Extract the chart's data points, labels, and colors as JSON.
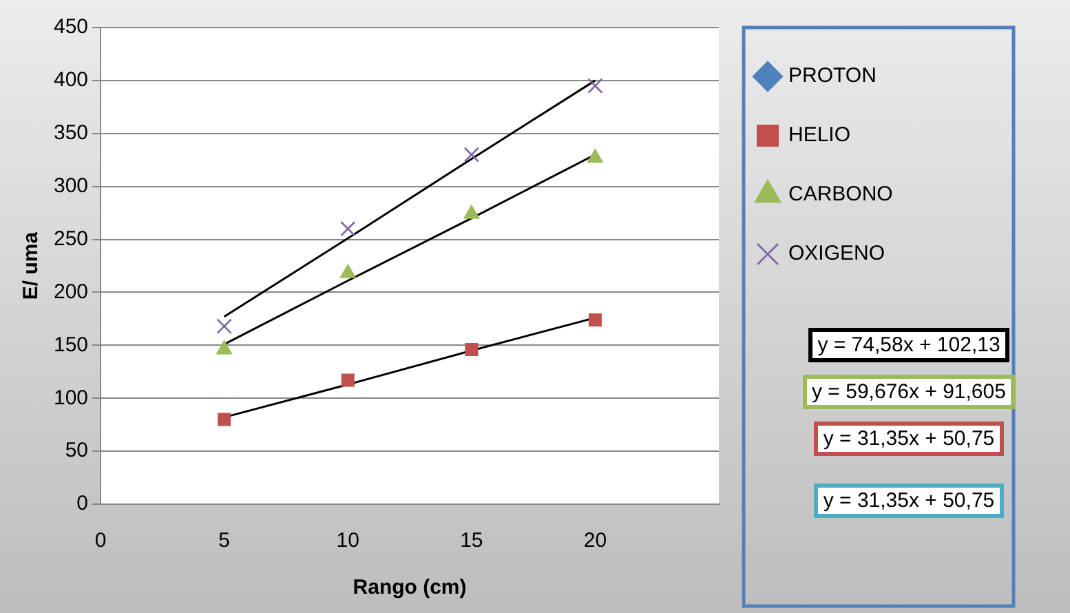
{
  "chart_data": {
    "type": "scatter",
    "xlabel": "Rango (cm)",
    "ylabel": "E/ uma",
    "x": [
      5,
      10,
      15,
      20
    ],
    "series": [
      {
        "name": "PROTON",
        "color": "#4f81bd",
        "marker": "diamond",
        "values": [
          null,
          null,
          null,
          null
        ]
      },
      {
        "name": "HELIO",
        "color": "#c0504d",
        "marker": "square",
        "values": [
          80,
          117,
          146,
          174
        ]
      },
      {
        "name": "CARBONO",
        "color": "#9bbb59",
        "marker": "triangle",
        "values": [
          146,
          218,
          274,
          327
        ]
      },
      {
        "name": "OXIGENO",
        "color": "#8064a2",
        "marker": "cross",
        "values": [
          168,
          260,
          330,
          395
        ]
      },
      {
        "type": "line",
        "color": "#000000",
        "marker": "none",
        "values": [
          177,
          251,
          326,
          400
        ]
      },
      {
        "type": "line",
        "color": "#000000",
        "marker": "none",
        "values": [
          151,
          211,
          270,
          330
        ]
      },
      {
        "type": "line",
        "color": "#000000",
        "marker": "none",
        "values": [
          82,
          113,
          145,
          176
        ]
      }
    ],
    "xlim": [
      0,
      25
    ],
    "xticks": [
      0,
      5,
      10,
      15,
      20,
      {
        "value": 25,
        "label": null
      }
    ],
    "ylim": [
      0,
      450
    ],
    "yticks": [
      0,
      50,
      100,
      150,
      200,
      250,
      300,
      350,
      400,
      450
    ],
    "grid": "y",
    "legend": "top right",
    "annotations": [
      "y = 74,58x + 102,13",
      "y = 59,676x + 91,605",
      "y = 31,35x + 50,75",
      "y = 31,35x + 50,75"
    ]
  }
}
